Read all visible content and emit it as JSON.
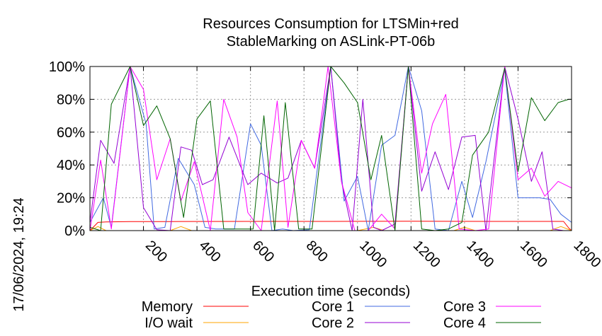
{
  "timestamp": "17/06/2024, 19:24",
  "chart_data": {
    "type": "line",
    "title": "Resources Consumption for LTSMin+red",
    "subtitle": "StableMarking on ASLink-PT-06b",
    "xlabel": "Execution time (seconds)",
    "ylabel": "",
    "xlim": [
      0,
      1800
    ],
    "ylim": [
      0,
      100
    ],
    "xticks": [
      200,
      400,
      600,
      800,
      1000,
      1200,
      1400,
      1600,
      1800
    ],
    "yticks": [
      0,
      20,
      40,
      60,
      80,
      100
    ],
    "ytick_labels": [
      "0%",
      "20%",
      "40%",
      "60%",
      "80%",
      "100%"
    ],
    "grid": true,
    "legend_position": "bottom",
    "series": [
      {
        "name": "Memory",
        "color": "#ff0000",
        "width": 1,
        "x": [
          0,
          30,
          60,
          150,
          300,
          600,
          900,
          1200,
          1500,
          1770,
          1790,
          1800
        ],
        "y": [
          0,
          5,
          5.3,
          5.5,
          5.5,
          5.6,
          5.6,
          5.7,
          5.6,
          5.6,
          1.5,
          0
        ]
      },
      {
        "name": "I/O wait",
        "color": "#ffa500",
        "width": 1,
        "x": [
          0,
          30,
          60,
          80,
          300,
          340,
          380,
          500,
          1000,
          1060,
          1100,
          1360,
          1400,
          1440,
          1720,
          1760,
          1800
        ],
        "y": [
          0,
          2.5,
          0,
          0,
          0,
          2.5,
          0,
          0,
          0,
          2,
          0,
          0,
          2,
          0,
          0,
          2.5,
          0
        ]
      },
      {
        "name": "Core 1",
        "color": "#4169e1",
        "width": 1,
        "x": [
          0,
          50,
          80,
          150,
          210,
          240,
          280,
          330,
          390,
          430,
          470,
          540,
          600,
          640,
          680,
          720,
          760,
          820,
          900,
          950,
          1000,
          1040,
          1090,
          1140,
          1190,
          1240,
          1290,
          1340,
          1390,
          1430,
          1480,
          1550,
          1600,
          1640,
          1680,
          1720,
          1760,
          1800
        ],
        "y": [
          5,
          20,
          2,
          100,
          65,
          1,
          2,
          44,
          28,
          2,
          1,
          1,
          65,
          52,
          0,
          1,
          0,
          0.5,
          100,
          18,
          33,
          0,
          52,
          58,
          100,
          73,
          1,
          0,
          30,
          8,
          42,
          98,
          20,
          20,
          20,
          19,
          10,
          5
        ]
      },
      {
        "name": "Core 2",
        "color": "#9400d3",
        "width": 1,
        "x": [
          0,
          40,
          90,
          150,
          200,
          250,
          300,
          340,
          380,
          420,
          460,
          520,
          590,
          640,
          700,
          740,
          790,
          840,
          900,
          940,
          980,
          1020,
          1060,
          1090,
          1140,
          1190,
          1240,
          1290,
          1340,
          1390,
          1440,
          1480,
          1550,
          1600,
          1650,
          1690,
          1730,
          1770,
          1800
        ],
        "y": [
          5,
          55,
          41,
          100,
          14,
          0.5,
          0,
          51,
          49,
          28,
          31,
          57,
          28,
          35,
          29,
          32,
          55,
          38,
          100,
          30,
          0,
          80,
          2,
          0,
          4,
          100,
          24,
          48,
          25,
          57,
          58,
          0,
          100,
          68,
          30,
          48,
          1,
          0,
          0
        ]
      },
      {
        "name": "Core 3",
        "color": "#ff00ff",
        "width": 1,
        "x": [
          0,
          40,
          80,
          150,
          200,
          250,
          300,
          340,
          390,
          450,
          500,
          550,
          590,
          640,
          700,
          740,
          790,
          840,
          890,
          940,
          990,
          1040,
          1090,
          1140,
          1190,
          1240,
          1280,
          1330,
          1380,
          1440,
          1490,
          1550,
          1600,
          1650,
          1700,
          1750,
          1800
        ],
        "y": [
          0,
          43,
          1,
          100,
          86,
          31,
          56,
          18,
          42,
          0,
          80,
          57,
          11,
          0,
          79,
          2,
          55,
          38,
          100,
          30,
          0,
          0,
          10,
          1,
          100,
          35,
          65,
          83,
          1,
          0,
          1,
          100,
          31,
          38,
          21,
          30,
          26
        ]
      },
      {
        "name": "Core 4",
        "color": "#006400",
        "width": 1,
        "x": [
          0,
          40,
          80,
          150,
          200,
          250,
          300,
          350,
          400,
          450,
          500,
          560,
          610,
          650,
          690,
          730,
          780,
          830,
          900,
          950,
          1000,
          1050,
          1090,
          1140,
          1190,
          1240,
          1290,
          1340,
          1390,
          1430,
          1490,
          1550,
          1600,
          1650,
          1700,
          1750,
          1790,
          1800
        ],
        "y": [
          2,
          0,
          77,
          100,
          64,
          76,
          56,
          8,
          68,
          79,
          1,
          1,
          1,
          70,
          0,
          78,
          1,
          1,
          100,
          90,
          78,
          31,
          58,
          0,
          100,
          1,
          0,
          1,
          5,
          46,
          60,
          99,
          36,
          81,
          67,
          78,
          80,
          80
        ]
      }
    ]
  }
}
